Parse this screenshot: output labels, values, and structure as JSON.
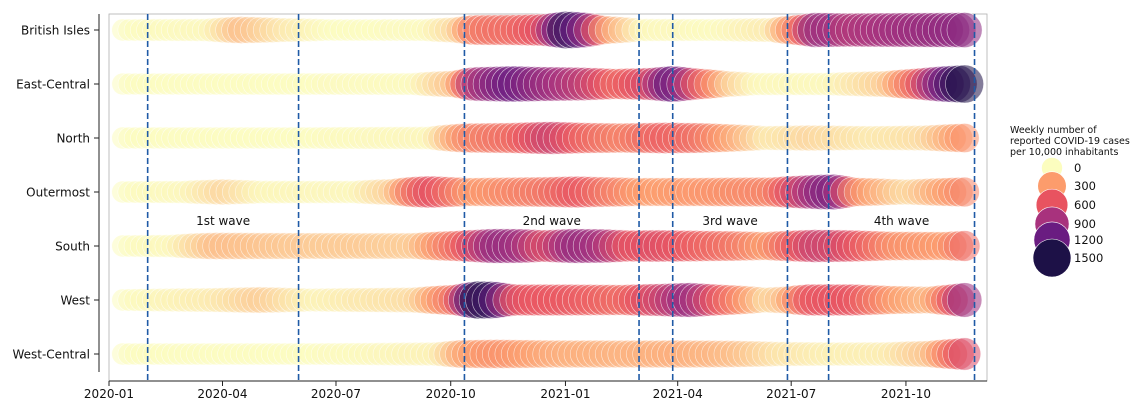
{
  "chart_data": {
    "type": "scatter",
    "title": "",
    "xlabel": "",
    "ylabel": "",
    "x_range": [
      "2020-01-01",
      "2021-12-05"
    ],
    "x_ticks": [
      "2020-01",
      "2020-04",
      "2020-07",
      "2020-10",
      "2021-01",
      "2021-04",
      "2021-07",
      "2021-10"
    ],
    "categories": [
      "British Isles",
      "East-Central",
      "North",
      "Outermost",
      "South",
      "West",
      "West-Central"
    ],
    "size_color_scale": {
      "title": "Weekly number of\nreported COVID-19 cases\nper 10,000 inhabitants",
      "levels": [
        0,
        300,
        600,
        900,
        1200,
        1500
      ],
      "colors": [
        "#fcfdbf",
        "#fc9c6c",
        "#e85360",
        "#a8327d",
        "#6a1c81",
        "#1d1147"
      ]
    },
    "markers": {
      "start": "2020-01-12",
      "end": "2021-11-21",
      "step_days": 5
    },
    "series": [
      {
        "name": "British Isles",
        "points": [
          [
            "2020-01-12",
            5
          ],
          [
            "2020-03-20",
            20
          ],
          [
            "2020-04-15",
            200
          ],
          [
            "2020-05-20",
            60
          ],
          [
            "2020-06-25",
            5
          ],
          [
            "2020-09-10",
            10
          ],
          [
            "2020-10-05",
            120
          ],
          [
            "2020-10-20",
            450
          ],
          [
            "2020-11-20",
            500
          ],
          [
            "2020-12-15",
            650
          ],
          [
            "2021-01-02",
            1450
          ],
          [
            "2021-01-15",
            1100
          ],
          [
            "2021-02-01",
            300
          ],
          [
            "2021-03-01",
            20
          ],
          [
            "2021-05-01",
            10
          ],
          [
            "2021-06-15",
            60
          ],
          [
            "2021-07-08",
            500
          ],
          [
            "2021-07-20",
            1000
          ],
          [
            "2021-08-15",
            850
          ],
          [
            "2021-10-01",
            950
          ],
          [
            "2021-11-21",
            1050
          ]
        ]
      },
      {
        "name": "East-Central",
        "points": [
          [
            "2020-01-12",
            3
          ],
          [
            "2020-09-01",
            10
          ],
          [
            "2020-10-05",
            200
          ],
          [
            "2020-10-20",
            900
          ],
          [
            "2020-11-20",
            1200
          ],
          [
            "2020-12-10",
            1000
          ],
          [
            "2021-01-15",
            800
          ],
          [
            "2021-02-10",
            500
          ],
          [
            "2021-03-10",
            700
          ],
          [
            "2021-03-28",
            1250
          ],
          [
            "2021-04-15",
            600
          ],
          [
            "2021-05-10",
            150
          ],
          [
            "2021-06-01",
            20
          ],
          [
            "2021-08-01",
            20
          ],
          [
            "2021-09-15",
            150
          ],
          [
            "2021-10-10",
            550
          ],
          [
            "2021-11-01",
            1200
          ],
          [
            "2021-11-21",
            1600
          ]
        ]
      },
      {
        "name": "North",
        "points": [
          [
            "2020-01-12",
            5
          ],
          [
            "2020-06-01",
            5
          ],
          [
            "2020-09-15",
            25
          ],
          [
            "2020-10-12",
            380
          ],
          [
            "2020-11-20",
            500
          ],
          [
            "2020-12-20",
            750
          ],
          [
            "2021-01-15",
            520
          ],
          [
            "2021-02-15",
            400
          ],
          [
            "2021-03-20",
            550
          ],
          [
            "2021-04-15",
            480
          ],
          [
            "2021-05-15",
            250
          ],
          [
            "2021-06-10",
            60
          ],
          [
            "2021-07-15",
            120
          ],
          [
            "2021-09-01",
            60
          ],
          [
            "2021-10-15",
            100
          ],
          [
            "2021-11-21",
            380
          ]
        ]
      },
      {
        "name": "Outermost",
        "points": [
          [
            "2020-01-12",
            5
          ],
          [
            "2020-03-01",
            20
          ],
          [
            "2020-04-01",
            120
          ],
          [
            "2020-05-01",
            25
          ],
          [
            "2020-07-15",
            20
          ],
          [
            "2020-08-15",
            150
          ],
          [
            "2020-09-01",
            500
          ],
          [
            "2020-09-15",
            650
          ],
          [
            "2020-10-15",
            300
          ],
          [
            "2020-12-15",
            450
          ],
          [
            "2021-01-10",
            600
          ],
          [
            "2021-02-01",
            450
          ],
          [
            "2021-03-01",
            300
          ],
          [
            "2021-04-15",
            320
          ],
          [
            "2021-06-15",
            400
          ],
          [
            "2021-07-25",
            1050
          ],
          [
            "2021-08-05",
            1100
          ],
          [
            "2021-08-20",
            350
          ],
          [
            "2021-10-01",
            100
          ],
          [
            "2021-11-21",
            420
          ]
        ]
      },
      {
        "name": "South",
        "points": [
          [
            "2020-01-12",
            5
          ],
          [
            "2020-02-20",
            20
          ],
          [
            "2020-03-25",
            200
          ],
          [
            "2020-06-01",
            160
          ],
          [
            "2020-09-01",
            150
          ],
          [
            "2020-10-10",
            550
          ],
          [
            "2020-11-05",
            1000
          ],
          [
            "2020-11-25",
            950
          ],
          [
            "2020-12-15",
            650
          ],
          [
            "2021-01-08",
            1000
          ],
          [
            "2021-01-30",
            900
          ],
          [
            "2021-02-20",
            600
          ],
          [
            "2021-03-15",
            650
          ],
          [
            "2021-04-15",
            550
          ],
          [
            "2021-05-15",
            450
          ],
          [
            "2021-06-10",
            300
          ],
          [
            "2021-07-01",
            550
          ],
          [
            "2021-07-20",
            750
          ],
          [
            "2021-08-15",
            650
          ],
          [
            "2021-09-20",
            350
          ],
          [
            "2021-11-01",
            300
          ],
          [
            "2021-11-21",
            550
          ]
        ]
      },
      {
        "name": "West",
        "points": [
          [
            "2020-01-12",
            5
          ],
          [
            "2020-03-25",
            60
          ],
          [
            "2020-05-01",
            150
          ],
          [
            "2020-06-10",
            30
          ],
          [
            "2020-09-01",
            100
          ],
          [
            "2020-10-05",
            500
          ],
          [
            "2020-10-22",
            1500
          ],
          [
            "2020-11-05",
            1350
          ],
          [
            "2020-11-20",
            600
          ],
          [
            "2021-01-01",
            580
          ],
          [
            "2021-02-15",
            500
          ],
          [
            "2021-03-20",
            750
          ],
          [
            "2021-04-10",
            1000
          ],
          [
            "2021-05-01",
            600
          ],
          [
            "2021-06-10",
            100
          ],
          [
            "2021-06-25",
            200
          ],
          [
            "2021-07-15",
            600
          ],
          [
            "2021-08-20",
            600
          ],
          [
            "2021-09-20",
            300
          ],
          [
            "2021-10-20",
            200
          ],
          [
            "2021-11-05",
            550
          ],
          [
            "2021-11-21",
            1100
          ]
        ]
      },
      {
        "name": "West-Central",
        "points": [
          [
            "2020-01-12",
            5
          ],
          [
            "2020-07-01",
            8
          ],
          [
            "2020-09-20",
            40
          ],
          [
            "2020-10-10",
            280
          ],
          [
            "2020-11-05",
            350
          ],
          [
            "2020-12-20",
            250
          ],
          [
            "2021-02-15",
            230
          ],
          [
            "2021-04-01",
            250
          ],
          [
            "2021-05-15",
            200
          ],
          [
            "2021-06-20",
            80
          ],
          [
            "2021-08-01",
            40
          ],
          [
            "2021-09-15",
            50
          ],
          [
            "2021-10-20",
            180
          ],
          [
            "2021-11-05",
            450
          ],
          [
            "2021-11-21",
            750
          ]
        ]
      }
    ],
    "waves": [
      {
        "label": "1st wave",
        "start": "2020-02-01",
        "end": "2020-06-01"
      },
      {
        "label": "2nd wave",
        "start": "2020-10-12",
        "end": "2021-03-01"
      },
      {
        "label": "3rd wave",
        "start": "2021-03-28",
        "end": "2021-06-28"
      },
      {
        "label": "4th wave",
        "start": "2021-07-31",
        "end": "2021-11-25"
      }
    ],
    "boundary_dates": [
      "2020-02-01",
      "2020-06-01",
      "2020-10-12",
      "2021-03-01",
      "2021-03-28",
      "2021-06-28",
      "2021-07-31",
      "2021-11-25"
    ],
    "grid": false,
    "legend_position": "right"
  }
}
